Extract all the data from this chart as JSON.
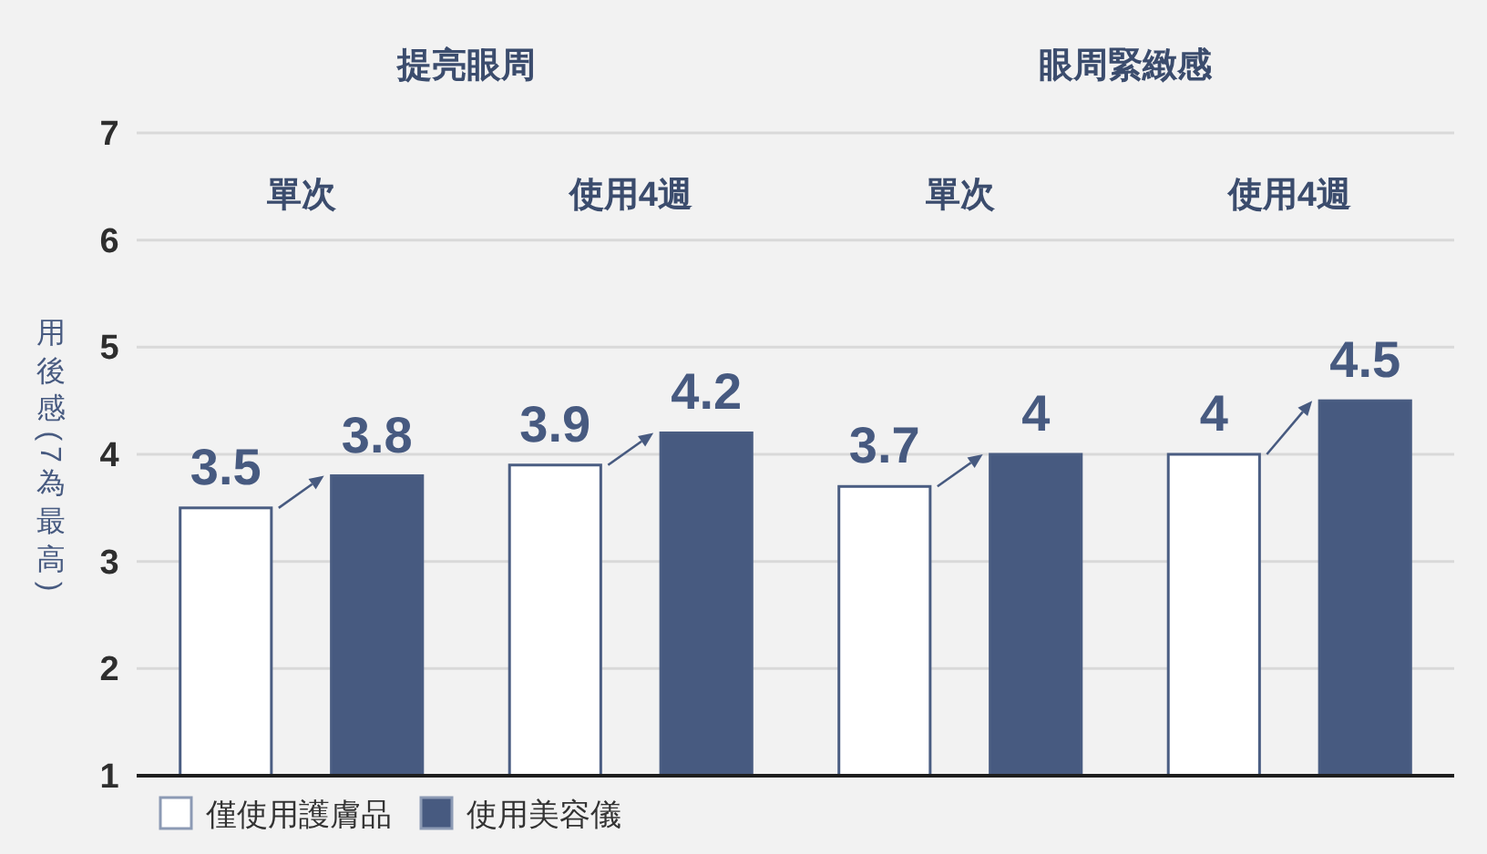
{
  "chart_data": {
    "type": "bar",
    "annotations": [
      "提亮眼周",
      "眼周緊緻感"
    ],
    "ylabel": "用後感(7為最高)",
    "categories": [
      "單次",
      "使用4週",
      "單次",
      "使用4週"
    ],
    "series": [
      {
        "name": "僅使用護膚品",
        "color": "#ffffff",
        "values": [
          3.5,
          3.9,
          3.7,
          4
        ]
      },
      {
        "name": "使用美容儀",
        "color": "#475a80",
        "values": [
          3.8,
          4.2,
          4,
          4.5
        ]
      }
    ],
    "ylim": [
      1,
      7
    ],
    "yticks": [
      1,
      2,
      3,
      4,
      5,
      6,
      7
    ],
    "grid": "y",
    "data_labels": true,
    "legend": "bottom left"
  }
}
